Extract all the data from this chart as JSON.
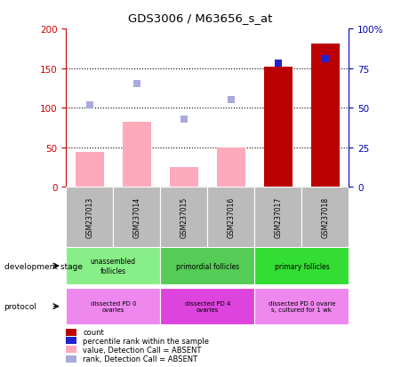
{
  "title": "GDS3006 / M63656_s_at",
  "samples": [
    "GSM237013",
    "GSM237014",
    "GSM237015",
    "GSM237016",
    "GSM237017",
    "GSM237018"
  ],
  "bar_values": [
    44,
    82,
    25,
    50,
    152,
    181
  ],
  "bar_color_absent": "#ffaabb",
  "bar_color_present": "#bb0000",
  "rank_values": [
    52,
    65,
    43,
    55,
    78,
    81
  ],
  "rank_color_absent": "#aaaadd",
  "rank_color_present": "#2222cc",
  "absent_indices": [
    0,
    1,
    2,
    3
  ],
  "present_indices": [
    4,
    5
  ],
  "ylim_left": [
    0,
    200
  ],
  "ylim_right": [
    0,
    100
  ],
  "yticks_left": [
    0,
    50,
    100,
    150,
    200
  ],
  "yticks_right": [
    0,
    25,
    50,
    75,
    100
  ],
  "yticklabels_left": [
    "0",
    "50",
    "100",
    "150",
    "200"
  ],
  "yticklabels_right": [
    "0",
    "25",
    "50",
    "75",
    "100%"
  ],
  "dev_stage_groups": [
    {
      "label": "unassembled\nfollicles",
      "start": 0,
      "end": 2,
      "color": "#88ee88"
    },
    {
      "label": "primordial follicles",
      "start": 2,
      "end": 4,
      "color": "#55cc55"
    },
    {
      "label": "primary follicles",
      "start": 4,
      "end": 6,
      "color": "#33dd33"
    }
  ],
  "protocol_groups": [
    {
      "label": "dissected PD 0\novaries",
      "start": 0,
      "end": 2,
      "color": "#ee88ee"
    },
    {
      "label": "dissected PD 4\novaries",
      "start": 2,
      "end": 4,
      "color": "#dd44dd"
    },
    {
      "label": "dissected PD 0 ovarie\ns, cultured for 1 wk",
      "start": 4,
      "end": 6,
      "color": "#ee88ee"
    }
  ],
  "legend_items": [
    {
      "label": "count",
      "color": "#bb0000"
    },
    {
      "label": "percentile rank within the sample",
      "color": "#2222cc"
    },
    {
      "label": "value, Detection Call = ABSENT",
      "color": "#ffaabb"
    },
    {
      "label": "rank, Detection Call = ABSENT",
      "color": "#aaaadd"
    }
  ],
  "left_label_dev": "development stage",
  "left_label_proto": "protocol",
  "tick_color_left": "#cc0000",
  "tick_color_right": "#0000bb",
  "sample_box_color": "#bbbbbb",
  "plot_bg": "#ffffff"
}
